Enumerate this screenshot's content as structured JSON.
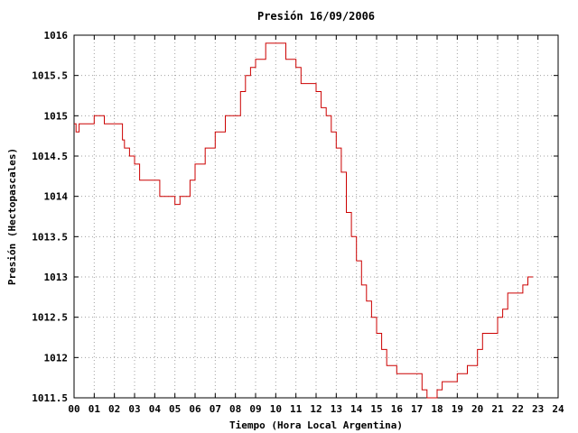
{
  "chart_data": {
    "type": "line",
    "title": "Presión 16/09/2006",
    "xlabel": "Tiempo (Hora Local Argentina)",
    "ylabel": "Presión (Hectopascales)",
    "xlim": [
      0,
      24
    ],
    "ylim": [
      1011.5,
      1016
    ],
    "x_ticks": [
      "00",
      "01",
      "02",
      "03",
      "04",
      "05",
      "06",
      "07",
      "08",
      "09",
      "10",
      "11",
      "12",
      "13",
      "14",
      "15",
      "16",
      "17",
      "18",
      "19",
      "20",
      "21",
      "22",
      "23",
      "24"
    ],
    "y_ticks": [
      "1011.5",
      "1012",
      "1012.5",
      "1013",
      "1013.5",
      "1014",
      "1014.5",
      "1015",
      "1015.5",
      "1016"
    ],
    "grid": true,
    "line_color": "#cc0000",
    "series": [
      {
        "name": "",
        "x": [
          0.0,
          0.1,
          0.25,
          0.5,
          1.0,
          1.4,
          1.5,
          2.0,
          2.4,
          2.5,
          2.75,
          3.0,
          3.25,
          3.5,
          4.0,
          4.25,
          4.75,
          5.0,
          5.25,
          5.5,
          5.75,
          6.0,
          6.5,
          7.0,
          7.5,
          8.0,
          8.25,
          8.5,
          8.75,
          9.0,
          9.25,
          9.5,
          10.0,
          10.5,
          11.0,
          11.25,
          11.5,
          12.0,
          12.25,
          12.5,
          12.75,
          13.0,
          13.25,
          13.5,
          13.75,
          14.0,
          14.25,
          14.5,
          14.75,
          15.0,
          15.25,
          15.5,
          15.75,
          16.0,
          16.5,
          17.0,
          17.25,
          17.5,
          17.75,
          18.0,
          18.25,
          18.5,
          18.75,
          19.0,
          19.25,
          19.5,
          19.75,
          20.0,
          20.25,
          20.5,
          20.75,
          21.0,
          21.25,
          21.5,
          21.75,
          22.0,
          22.25,
          22.5,
          22.75
        ],
        "values": [
          1014.9,
          1014.8,
          1014.9,
          1014.9,
          1015.0,
          1015.0,
          1014.9,
          1014.9,
          1014.7,
          1014.6,
          1014.5,
          1014.4,
          1014.2,
          1014.2,
          1014.2,
          1014.0,
          1014.0,
          1013.9,
          1014.0,
          1014.0,
          1014.2,
          1014.4,
          1014.6,
          1014.8,
          1015.0,
          1015.0,
          1015.3,
          1015.5,
          1015.6,
          1015.7,
          1015.7,
          1015.9,
          1015.9,
          1015.7,
          1015.6,
          1015.4,
          1015.4,
          1015.3,
          1015.1,
          1015.0,
          1014.8,
          1014.6,
          1014.3,
          1013.8,
          1013.5,
          1013.2,
          1012.9,
          1012.7,
          1012.5,
          1012.3,
          1012.1,
          1011.9,
          1011.9,
          1011.8,
          1011.8,
          1011.8,
          1011.6,
          1011.5,
          1011.5,
          1011.6,
          1011.7,
          1011.7,
          1011.7,
          1011.8,
          1011.8,
          1011.9,
          1011.9,
          1012.1,
          1012.3,
          1012.3,
          1012.3,
          1012.5,
          1012.6,
          1012.8,
          1012.8,
          1012.8,
          1012.9,
          1013.0,
          1013.0
        ]
      }
    ]
  }
}
